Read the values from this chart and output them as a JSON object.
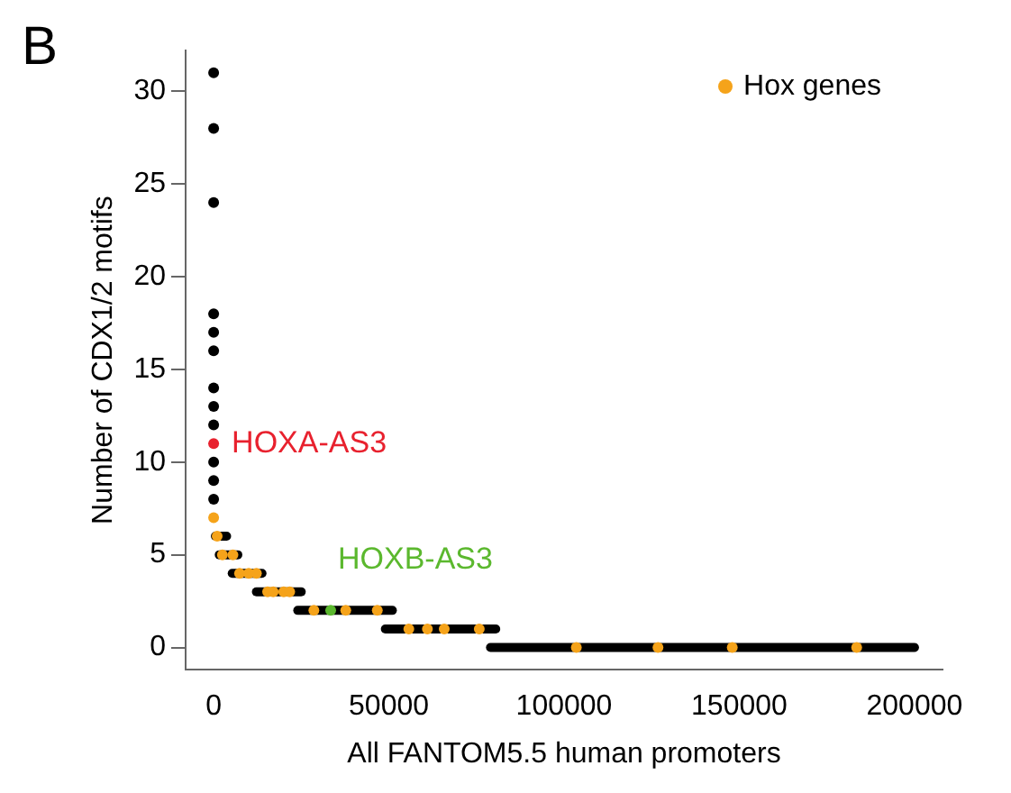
{
  "chart_data": {
    "type": "scatter",
    "xlabel": "All FANTOM5.5 human promoters",
    "ylabel": "Number of CDX1/2 motifs",
    "annotations": [
      "B",
      {
        "text": "HOXA-AS3",
        "x": 0,
        "y": 11
      },
      {
        "text": "HOXB-AS3",
        "x": 33400,
        "y": 2
      }
    ],
    "xlim": [
      -8000,
      208000
    ],
    "xticks": [
      0,
      50000,
      100000,
      150000,
      200000
    ],
    "ylim": [
      -1.2,
      32.2
    ],
    "yticks": [
      0,
      5,
      10,
      15,
      20,
      25,
      30
    ],
    "legend": "top right",
    "marker": "circle",
    "grid": false,
    "series": [
      {
        "type": "line",
        "marker": "none",
        "color": "#000000",
        "x": [
          79000,
          200000
        ],
        "values": [
          0,
          0
        ]
      },
      {
        "type": "line",
        "marker": "none",
        "color": "#000000",
        "x": [
          49000,
          80500
        ],
        "values": [
          1,
          1
        ]
      },
      {
        "type": "line",
        "marker": "none",
        "color": "#000000",
        "x": [
          24000,
          51000
        ],
        "values": [
          2,
          2
        ]
      },
      {
        "type": "line",
        "marker": "none",
        "color": "#000000",
        "x": [
          12200,
          25000
        ],
        "values": [
          3,
          3
        ]
      },
      {
        "type": "line",
        "marker": "none",
        "color": "#000000",
        "x": [
          5300,
          13800
        ],
        "values": [
          4,
          4
        ]
      },
      {
        "type": "line",
        "marker": "none",
        "color": "#000000",
        "x": [
          1600,
          6900
        ],
        "values": [
          5,
          5
        ]
      },
      {
        "type": "line",
        "marker": "none",
        "color": "#000000",
        "x": [
          500,
          3700
        ],
        "values": [
          6,
          6
        ]
      },
      {
        "color": "#000000",
        "x": [
          0,
          0,
          0,
          0,
          0,
          0,
          0,
          0,
          0,
          0,
          0,
          0
        ],
        "values": [
          31,
          28,
          24,
          18,
          17,
          16,
          14,
          13,
          12,
          10,
          9,
          8
        ]
      },
      {
        "name": "Hox genes",
        "color": "#f5a31a",
        "x": [
          0,
          1000,
          2500,
          5500,
          7400,
          10000,
          12200,
          15400,
          17000,
          20000,
          21700,
          28600,
          37700,
          46700,
          55700,
          61000,
          65800,
          75800,
          103500,
          126800,
          148000,
          183500
        ],
        "values": [
          7,
          6,
          5,
          5,
          4,
          4,
          4,
          3,
          3,
          3,
          3,
          2,
          2,
          2,
          1,
          1,
          1,
          1,
          0,
          0,
          0,
          0
        ]
      },
      {
        "color": "#e8212e",
        "x": [
          0
        ],
        "values": [
          11
        ]
      },
      {
        "color": "#5bb82e",
        "x": [
          33400
        ],
        "values": [
          2
        ]
      }
    ]
  }
}
